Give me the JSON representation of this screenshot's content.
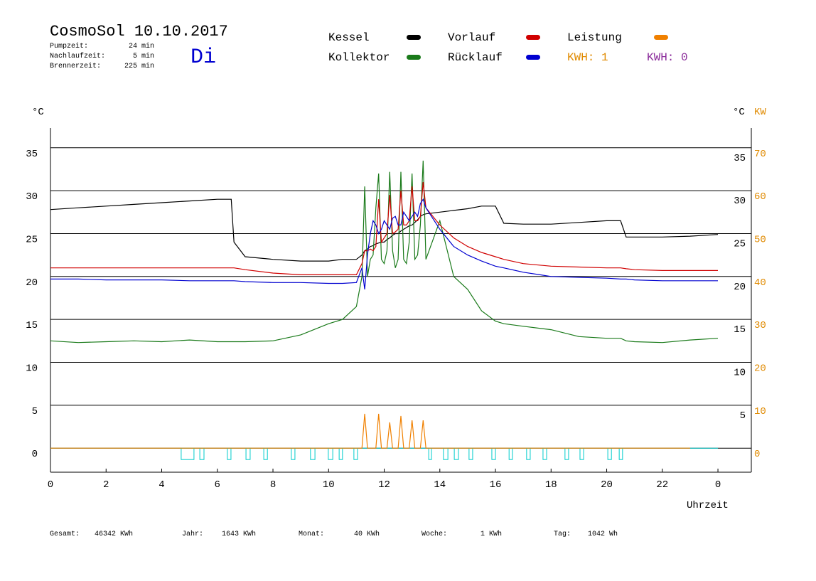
{
  "header": {
    "title": "CosmoSol 10.10.2017",
    "weekday": "Di",
    "stats": [
      {
        "label": "Pumpzeit:",
        "value": "24 min"
      },
      {
        "label": "Nachlaufzeit:",
        "value": "5 min"
      },
      {
        "label": "Brennerzeit:",
        "value": "225 min"
      }
    ],
    "kwh_labels": [
      {
        "text": "KWH: 1",
        "color": "#e08a00"
      },
      {
        "text": "KWH: 0",
        "color": "#8a2a9a"
      }
    ]
  },
  "footer": [
    {
      "label": "Gesamt:",
      "value": "46342 KWh"
    },
    {
      "label": "Jahr:",
      "value": "1643 KWh"
    },
    {
      "label": "Monat:",
      "value": "40 KWh"
    },
    {
      "label": "Woche:",
      "value": "1 KWh"
    },
    {
      "label": "Tag:",
      "value": "1042 Wh"
    }
  ],
  "chart_data": {
    "type": "line",
    "y_label": "°C",
    "y2_label": "°C",
    "y2_unit": "KW",
    "x_label": "Uhrzeit",
    "x": [
      0,
      1,
      2,
      3,
      4,
      5,
      6,
      6.5,
      6.6,
      7,
      8,
      9,
      10,
      10.5,
      11,
      11.2,
      11.3,
      11.4,
      11.5,
      11.6,
      11.7,
      11.8,
      11.9,
      12,
      12.1,
      12.2,
      12.3,
      12.4,
      12.5,
      12.6,
      12.7,
      12.8,
      12.9,
      13,
      13.1,
      13.2,
      13.3,
      13.4,
      13.5,
      14,
      14.5,
      15,
      15.5,
      16,
      16.3,
      17,
      18,
      19,
      20,
      20.5,
      20.7,
      21,
      22,
      23,
      24
    ],
    "series": [
      {
        "name": "Kessel",
        "color": "#000000",
        "values": [
          27.8,
          28,
          28.2,
          28.4,
          28.6,
          28.8,
          29,
          29,
          24,
          22.3,
          22,
          21.8,
          21.8,
          22,
          22,
          22.5,
          23,
          23.2,
          23.5,
          23.6,
          23.8,
          23.9,
          24,
          24,
          24.3,
          24.5,
          24.8,
          25,
          25,
          25.3,
          25.5,
          25.7,
          25.9,
          26,
          26.3,
          26.6,
          27,
          27.2,
          27.3,
          27.5,
          27.7,
          27.9,
          28.2,
          28.2,
          26.2,
          26.1,
          26.1,
          26.3,
          26.5,
          26.5,
          24.6,
          24.6,
          24.6,
          24.7,
          24.9
        ]
      },
      {
        "name": "Kollektor",
        "color": "#1a7a1a",
        "values": [
          12.5,
          12.3,
          12.4,
          12.5,
          12.4,
          12.6,
          12.4,
          12.4,
          12.4,
          12.4,
          12.5,
          13.2,
          14.5,
          15,
          16.5,
          20,
          30.5,
          20,
          22,
          22.5,
          28,
          32,
          22,
          21.5,
          23,
          32.2,
          23,
          21,
          22,
          32.2,
          22,
          21.5,
          24,
          32,
          22,
          22.5,
          26,
          33.5,
          22,
          26.5,
          20,
          18.5,
          16,
          14.8,
          14.5,
          14.2,
          13.8,
          13,
          12.8,
          12.8,
          12.5,
          12.4,
          12.3,
          12.6,
          12.8
        ]
      },
      {
        "name": "Vorlauf",
        "color": "#d00000",
        "values": [
          21,
          21,
          21,
          21,
          21,
          21,
          21,
          21,
          21,
          20.8,
          20.4,
          20.2,
          20.2,
          20.2,
          20.2,
          21.5,
          23,
          23,
          23.2,
          23,
          23.5,
          29,
          24,
          24.5,
          25,
          29.5,
          25,
          25.2,
          25.5,
          30,
          26,
          26,
          26.5,
          30.5,
          26.5,
          26.5,
          27,
          31,
          28,
          26,
          24.5,
          23.5,
          22.8,
          22.3,
          22,
          21.5,
          21.2,
          21.1,
          21,
          21,
          20.9,
          20.8,
          20.7,
          20.7,
          20.7
        ]
      },
      {
        "name": "Rücklauf",
        "color": "#0000d0",
        "values": [
          19.7,
          19.7,
          19.6,
          19.6,
          19.6,
          19.5,
          19.5,
          19.5,
          19.5,
          19.4,
          19.3,
          19.3,
          19.2,
          19.2,
          19.3,
          21,
          18.5,
          22.5,
          25,
          26.5,
          26,
          25,
          25.5,
          26.5,
          26,
          25.5,
          26.8,
          27,
          26,
          26,
          27.5,
          27,
          26.5,
          27,
          27.5,
          27,
          28.5,
          29,
          28,
          25.5,
          23.5,
          22.5,
          21.8,
          21.2,
          21,
          20.5,
          20,
          19.9,
          19.8,
          19.7,
          19.7,
          19.6,
          19.5,
          19.5,
          19.5
        ]
      },
      {
        "name": "Leistung",
        "color": "#f08000",
        "axis": "y2",
        "values": [
          0,
          0,
          0,
          0,
          0,
          0,
          0,
          0,
          0,
          0,
          0,
          0,
          0,
          0,
          0,
          0,
          8,
          0,
          0,
          0,
          0,
          8,
          0,
          0,
          0,
          6,
          0,
          0,
          0,
          7.5,
          0,
          0,
          0,
          6.5,
          0,
          0,
          0,
          6.5,
          0,
          0,
          0,
          0,
          0,
          0,
          0,
          0,
          0,
          0,
          0,
          0,
          0,
          0,
          0,
          0,
          null
        ]
      }
    ],
    "pump_color": "#00cccc",
    "pump_intervals": [
      [
        4.7,
        5.16
      ],
      [
        5.37,
        5.52
      ],
      [
        6.36,
        6.49
      ],
      [
        7.03,
        7.18
      ],
      [
        7.67,
        7.8
      ],
      [
        8.66,
        8.79
      ],
      [
        9.35,
        9.51
      ],
      [
        9.99,
        10.15
      ],
      [
        10.38,
        10.5
      ],
      [
        10.91,
        11.04
      ],
      [
        13.6,
        13.7
      ],
      [
        14.13,
        14.29
      ],
      [
        14.52,
        14.67
      ],
      [
        15.05,
        15.18
      ],
      [
        15.87,
        16
      ],
      [
        16.49,
        16.61
      ],
      [
        17.12,
        17.25
      ],
      [
        17.71,
        17.84
      ],
      [
        18.5,
        18.63
      ],
      [
        19.04,
        19.17
      ],
      [
        20.04,
        20.17
      ],
      [
        20.45,
        20.57
      ]
    ],
    "xlim": [
      0,
      25.2
    ],
    "xticks": [
      0,
      2,
      4,
      6,
      8,
      10,
      12,
      14,
      16,
      18,
      20,
      22,
      {
        "value": 24,
        "label": "0"
      }
    ],
    "ylim": [
      -2.8,
      37.3
    ],
    "yticks": [
      0,
      5,
      10,
      15,
      20,
      25,
      30,
      35
    ],
    "y2lim": [
      -5.6,
      74.6
    ],
    "y2ticks": [
      0,
      10,
      20,
      30,
      40,
      50,
      60,
      70
    ],
    "y2_color": "#e08a00",
    "grid": true
  }
}
